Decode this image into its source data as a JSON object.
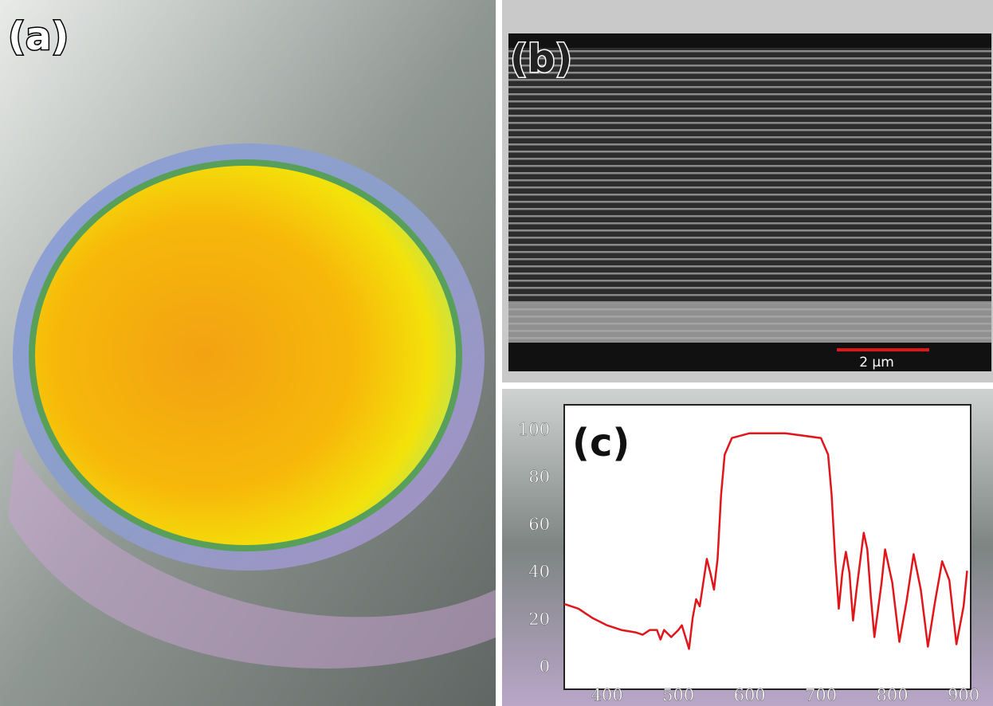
{
  "panels": {
    "a": "(a)",
    "b": "(b)"
  },
  "scale_bar": "2 μm",
  "chart_data": {
    "type": "line",
    "title": "(c)",
    "color": "#e0161b",
    "x": [
      340,
      360,
      380,
      400,
      420,
      440,
      450,
      460,
      470,
      475,
      480,
      490,
      500,
      505,
      510,
      515,
      520,
      525,
      530,
      535,
      540,
      545,
      550,
      555,
      560,
      565,
      575,
      600,
      650,
      700,
      710,
      715,
      720,
      725,
      730,
      735,
      740,
      745,
      750,
      760,
      765,
      770,
      775,
      785,
      790,
      800,
      810,
      820,
      830,
      840,
      850,
      860,
      870,
      880,
      890,
      900,
      905
    ],
    "values": [
      27,
      25,
      21,
      18,
      16,
      15,
      14,
      16,
      16,
      12,
      16,
      13,
      16,
      18,
      13,
      8,
      21,
      29,
      26,
      36,
      46,
      40,
      33,
      46,
      73,
      90,
      97,
      99,
      99,
      97,
      90,
      73,
      46,
      25,
      40,
      49,
      40,
      20,
      33,
      57,
      50,
      30,
      13,
      36,
      50,
      36,
      11,
      28,
      48,
      33,
      9,
      28,
      45,
      37,
      10,
      26,
      41
    ],
    "xlim": [
      340,
      910
    ],
    "ylim": [
      -9,
      111
    ],
    "xticks": [
      400,
      500,
      600,
      700,
      800,
      900
    ],
    "yticks": [
      0,
      20,
      40,
      60,
      80,
      100
    ]
  }
}
